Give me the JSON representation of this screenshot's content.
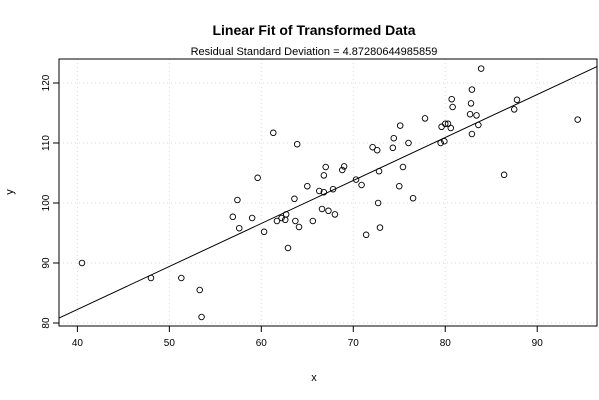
{
  "chart_data": {
    "type": "scatter",
    "title": "Linear Fit of Transformed Data",
    "subtitle": "Residual Standard Deviation =  4.87280644985859",
    "xlabel": "x",
    "ylabel": "y",
    "xlim": [
      38,
      96.5
    ],
    "ylim": [
      79.5,
      124
    ],
    "xticks": [
      40,
      50,
      60,
      70,
      80,
      90
    ],
    "yticks": [
      80,
      90,
      100,
      110,
      120
    ],
    "grid": true,
    "legend": "none",
    "point_color": "#000000",
    "line_color": "#000000",
    "fit_line": {
      "slope": 0.7165,
      "intercept": 53.6
    },
    "points": [
      [
        40.5,
        90.0
      ],
      [
        48.0,
        87.5
      ],
      [
        51.3,
        87.5
      ],
      [
        53.3,
        85.5
      ],
      [
        53.5,
        81.0
      ],
      [
        56.9,
        97.7
      ],
      [
        57.4,
        100.5
      ],
      [
        57.6,
        95.8
      ],
      [
        59.0,
        97.5
      ],
      [
        59.6,
        104.2
      ],
      [
        60.3,
        95.2
      ],
      [
        61.3,
        111.7
      ],
      [
        61.7,
        97.0
      ],
      [
        62.2,
        97.5
      ],
      [
        62.6,
        97.2
      ],
      [
        62.7,
        98.1
      ],
      [
        62.9,
        92.5
      ],
      [
        63.6,
        100.7
      ],
      [
        63.7,
        97.0
      ],
      [
        63.9,
        109.8
      ],
      [
        64.1,
        96.0
      ],
      [
        65.0,
        102.8
      ],
      [
        65.6,
        97.0
      ],
      [
        66.3,
        102.0
      ],
      [
        66.6,
        99.0
      ],
      [
        66.8,
        104.6
      ],
      [
        66.8,
        101.8
      ],
      [
        67.0,
        106.0
      ],
      [
        67.3,
        98.7
      ],
      [
        67.8,
        102.3
      ],
      [
        68.0,
        98.1
      ],
      [
        68.8,
        105.5
      ],
      [
        69.0,
        106.1
      ],
      [
        70.3,
        103.9
      ],
      [
        70.9,
        103.0
      ],
      [
        71.4,
        94.7
      ],
      [
        72.1,
        109.3
      ],
      [
        72.6,
        108.8
      ],
      [
        72.7,
        100.0
      ],
      [
        72.8,
        105.3
      ],
      [
        72.9,
        95.9
      ],
      [
        74.3,
        109.2
      ],
      [
        74.4,
        110.8
      ],
      [
        75.0,
        102.8
      ],
      [
        75.1,
        112.9
      ],
      [
        75.4,
        106.0
      ],
      [
        76.0,
        110.0
      ],
      [
        76.5,
        100.8
      ],
      [
        77.8,
        114.1
      ],
      [
        79.5,
        110.0
      ],
      [
        79.6,
        112.7
      ],
      [
        79.9,
        110.3
      ],
      [
        80.0,
        113.2
      ],
      [
        80.3,
        113.2
      ],
      [
        80.6,
        112.5
      ],
      [
        80.7,
        117.3
      ],
      [
        80.8,
        116.0
      ],
      [
        82.8,
        116.6
      ],
      [
        82.9,
        118.9
      ],
      [
        82.9,
        111.5
      ],
      [
        82.7,
        114.8
      ],
      [
        83.4,
        114.6
      ],
      [
        83.6,
        113.0
      ],
      [
        83.9,
        122.4
      ],
      [
        86.4,
        104.7
      ],
      [
        87.5,
        115.6
      ],
      [
        87.8,
        117.2
      ],
      [
        94.4,
        113.9
      ]
    ]
  }
}
